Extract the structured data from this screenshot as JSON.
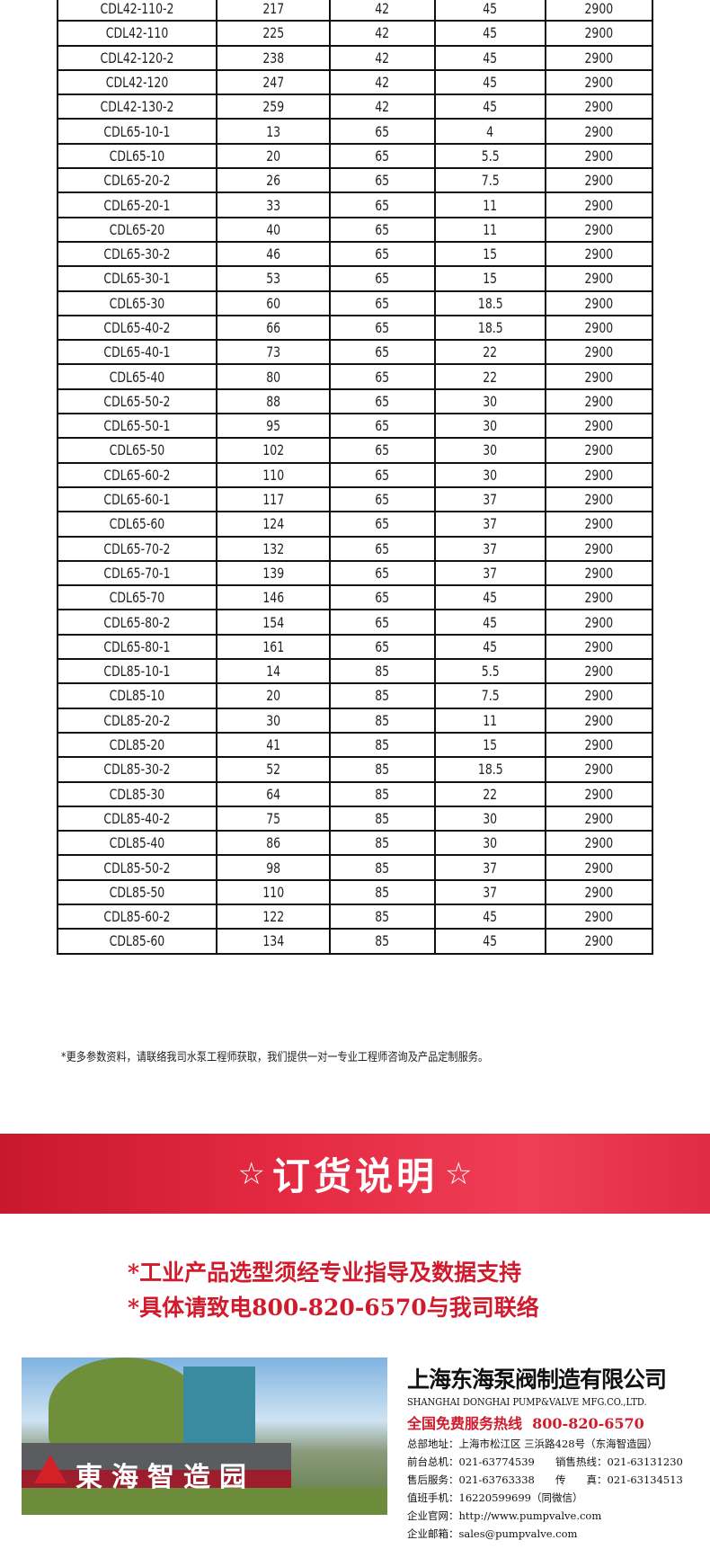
{
  "table": {
    "rows": [
      [
        "CDL42-110-2",
        "217",
        "42",
        "45",
        "2900"
      ],
      [
        "CDL42-110",
        "225",
        "42",
        "45",
        "2900"
      ],
      [
        "CDL42-120-2",
        "238",
        "42",
        "45",
        "2900"
      ],
      [
        "CDL42-120",
        "247",
        "42",
        "45",
        "2900"
      ],
      [
        "CDL42-130-2",
        "259",
        "42",
        "45",
        "2900"
      ],
      [
        "CDL65-10-1",
        "13",
        "65",
        "4",
        "2900"
      ],
      [
        "CDL65-10",
        "20",
        "65",
        "5.5",
        "2900"
      ],
      [
        "CDL65-20-2",
        "26",
        "65",
        "7.5",
        "2900"
      ],
      [
        "CDL65-20-1",
        "33",
        "65",
        "11",
        "2900"
      ],
      [
        "CDL65-20",
        "40",
        "65",
        "11",
        "2900"
      ],
      [
        "CDL65-30-2",
        "46",
        "65",
        "15",
        "2900"
      ],
      [
        "CDL65-30-1",
        "53",
        "65",
        "15",
        "2900"
      ],
      [
        "CDL65-30",
        "60",
        "65",
        "18.5",
        "2900"
      ],
      [
        "CDL65-40-2",
        "66",
        "65",
        "18.5",
        "2900"
      ],
      [
        "CDL65-40-1",
        "73",
        "65",
        "22",
        "2900"
      ],
      [
        "CDL65-40",
        "80",
        "65",
        "22",
        "2900"
      ],
      [
        "CDL65-50-2",
        "88",
        "65",
        "30",
        "2900"
      ],
      [
        "CDL65-50-1",
        "95",
        "65",
        "30",
        "2900"
      ],
      [
        "CDL65-50",
        "102",
        "65",
        "30",
        "2900"
      ],
      [
        "CDL65-60-2",
        "110",
        "65",
        "30",
        "2900"
      ],
      [
        "CDL65-60-1",
        "117",
        "65",
        "37",
        "2900"
      ],
      [
        "CDL65-60",
        "124",
        "65",
        "37",
        "2900"
      ],
      [
        "CDL65-70-2",
        "132",
        "65",
        "37",
        "2900"
      ],
      [
        "CDL65-70-1",
        "139",
        "65",
        "37",
        "2900"
      ],
      [
        "CDL65-70",
        "146",
        "65",
        "45",
        "2900"
      ],
      [
        "CDL65-80-2",
        "154",
        "65",
        "45",
        "2900"
      ],
      [
        "CDL65-80-1",
        "161",
        "65",
        "45",
        "2900"
      ],
      [
        "CDL85-10-1",
        "14",
        "85",
        "5.5",
        "2900"
      ],
      [
        "CDL85-10",
        "20",
        "85",
        "7.5",
        "2900"
      ],
      [
        "CDL85-20-2",
        "30",
        "85",
        "11",
        "2900"
      ],
      [
        "CDL85-20",
        "41",
        "85",
        "15",
        "2900"
      ],
      [
        "CDL85-30-2",
        "52",
        "85",
        "18.5",
        "2900"
      ],
      [
        "CDL85-30",
        "64",
        "85",
        "22",
        "2900"
      ],
      [
        "CDL85-40-2",
        "75",
        "85",
        "30",
        "2900"
      ],
      [
        "CDL85-40",
        "86",
        "85",
        "30",
        "2900"
      ],
      [
        "CDL85-50-2",
        "98",
        "85",
        "37",
        "2900"
      ],
      [
        "CDL85-50",
        "110",
        "85",
        "37",
        "2900"
      ],
      [
        "CDL85-60-2",
        "122",
        "85",
        "45",
        "2900"
      ],
      [
        "CDL85-60",
        "134",
        "85",
        "45",
        "2900"
      ]
    ]
  },
  "footnote": "*更多参数资料，请联络我司水泵工程师获取，我们提供一对一专业工程师咨询及产品定制服务。",
  "banner": {
    "star_left": "☆",
    "title": "订货说明",
    "star_right": "☆",
    "color": "#e02c45"
  },
  "notices": [
    "*工业产品选型须经专业指导及数据支持",
    "*具体请致电800-820-6570与我司联络"
  ],
  "photo": {
    "sign_text": "東海智造园"
  },
  "company": {
    "name_cn": "上海东海泵阀制造有限公司",
    "name_en": "SHANGHAI DONGHAI PUMP&VALVE MFG.CO.,LTD.",
    "hotline_label": "全国免费服务热线",
    "hotline": "800-820-6570",
    "address": "总部地址：上海市松江区 三浜路428号（东海智造园）",
    "front_desk": "前台总机：021-63774539",
    "sales_hotline": "销售热线：021-63131230",
    "after_sales": "售后服务：021-63763338",
    "fax": "传　　真：021-63134513",
    "duty_mobile": "值班手机：16220599699（同微信）",
    "website": "企业官网：http://www.pumpvalve.com",
    "email": "企业邮箱：sales@pumpvalve.com"
  }
}
